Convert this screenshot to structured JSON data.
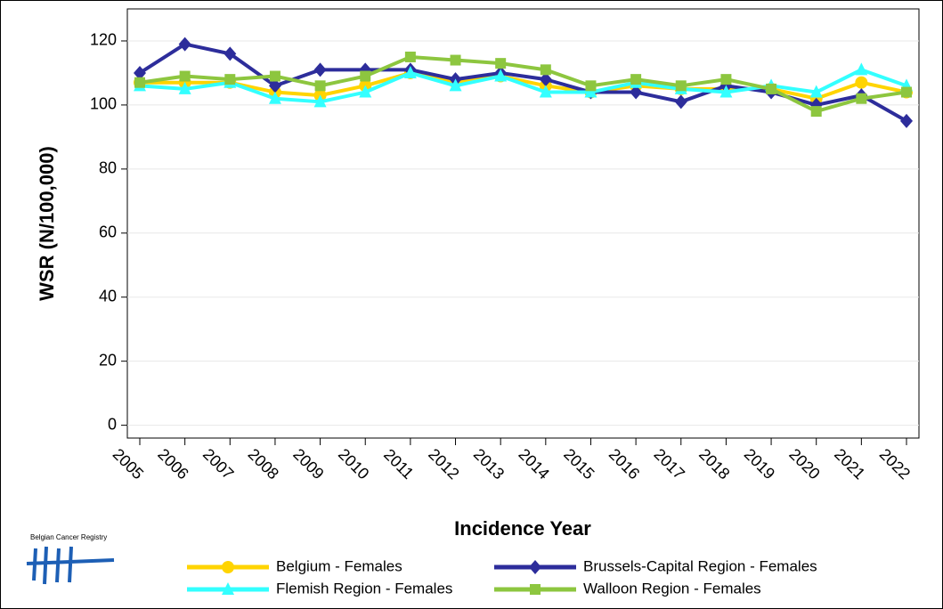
{
  "chart_data": {
    "type": "line",
    "y_label": "WSR (N/100,000)",
    "x_label": "Incidence Year",
    "logo_text": "Belgian Cancer Registry",
    "categories": [
      "2005",
      "2006",
      "2007",
      "2008",
      "2009",
      "2010",
      "2011",
      "2012",
      "2013",
      "2014",
      "2015",
      "2016",
      "2017",
      "2018",
      "2019",
      "2020",
      "2021",
      "2022"
    ],
    "series": [
      {
        "name": "Belgium - Females",
        "color": "#ffd400",
        "marker": "circle",
        "values": [
          107,
          107,
          107,
          104,
          103,
          106,
          110,
          107,
          109,
          106,
          104,
          106,
          105,
          105,
          105,
          102,
          107,
          104
        ]
      },
      {
        "name": "Brussels-Capital Region - Females",
        "color": "#2d2d9b",
        "marker": "diamond",
        "values": [
          110,
          119,
          116,
          106,
          111,
          111,
          111,
          108,
          110,
          108,
          104,
          104,
          101,
          106,
          104,
          100,
          103,
          95
        ]
      },
      {
        "name": "Flemish Region - Females",
        "color": "#33ffff",
        "marker": "triangle",
        "values": [
          106,
          105,
          107,
          102,
          101,
          104,
          110,
          106,
          109,
          104,
          104,
          107,
          105,
          104,
          106,
          104,
          111,
          106
        ]
      },
      {
        "name": "Walloon Region - Females",
        "color": "#8dc63f",
        "marker": "square",
        "values": [
          107,
          109,
          108,
          109,
          106,
          109,
          115,
          114,
          113,
          111,
          106,
          108,
          106,
          108,
          105,
          98,
          102,
          104
        ]
      }
    ],
    "ylim": [
      -4,
      130
    ],
    "yticks": [
      0,
      20,
      40,
      60,
      80,
      100,
      120
    ],
    "grid": true
  }
}
